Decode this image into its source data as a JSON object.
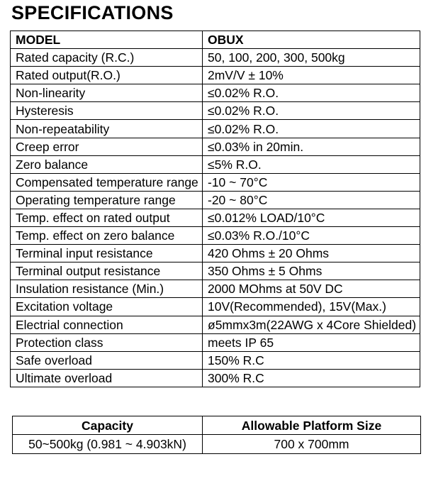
{
  "page_title": "SPECIFICATIONS",
  "colors": {
    "text": "#000000",
    "border": "#000000",
    "background": "#ffffff"
  },
  "spec_table": {
    "columns": [
      "MODEL",
      "OBUX"
    ],
    "rows": [
      {
        "label": "Rated capacity (R.C.)",
        "value": "50, 100, 200, 300, 500kg"
      },
      {
        "label": "Rated output(R.O.)",
        "value": "2mV/V ± 10%"
      },
      {
        "label": "Non-linearity",
        "value": "≤0.02% R.O."
      },
      {
        "label": "Hysteresis",
        "value": "≤0.02% R.O."
      },
      {
        "label": "Non-repeatability",
        "value": "≤0.02% R.O."
      },
      {
        "label": "Creep error",
        "value": "≤0.03% in 20min."
      },
      {
        "label": "Zero balance",
        "value": "≤5% R.O."
      },
      {
        "label": "Compensated temperature range",
        "value": "-10 ~ 70°C"
      },
      {
        "label": "Operating temperature range",
        "value": "-20 ~ 80°C"
      },
      {
        "label": "Temp. effect on rated output",
        "value": "≤0.012% LOAD/10°C"
      },
      {
        "label": "Temp. effect on zero balance",
        "value": "≤0.03% R.O./10°C"
      },
      {
        "label": "Terminal input resistance",
        "value": "420 Ohms ± 20 Ohms"
      },
      {
        "label": "Terminal output resistance",
        "value": "350 Ohms ± 5 Ohms"
      },
      {
        "label": "Insulation resistance (Min.)",
        "value": "2000 MOhms at 50V DC"
      },
      {
        "label": "Excitation voltage",
        "value": "10V(Recommended), 15V(Max.)"
      },
      {
        "label": "Electrial connection",
        "value": "ø5mmx3m(22AWG x 4Core Shielded)"
      },
      {
        "label": "Protection class",
        "value": "meets IP 65"
      },
      {
        "label": "Safe overload",
        "value": "150% R.C"
      },
      {
        "label": "Ultimate overload",
        "value": "300% R.C"
      }
    ]
  },
  "capacity_table": {
    "columns": [
      "Capacity",
      "Allowable Platform Size"
    ],
    "rows": [
      {
        "capacity": "50~500kg (0.981 ~ 4.903kN)",
        "platform_size": "700 x 700mm"
      }
    ]
  }
}
